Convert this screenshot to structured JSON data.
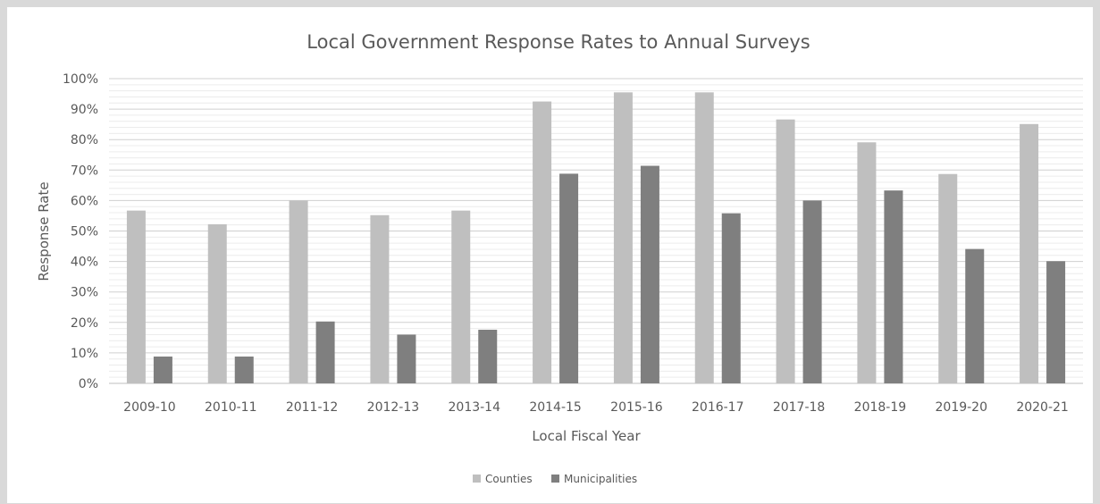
{
  "chart_data": {
    "type": "bar",
    "title": "Local Government Response Rates to Annual Surveys",
    "xlabel": "Local Fiscal Year",
    "ylabel": "Response Rate",
    "ylim": [
      0,
      100
    ],
    "y_ticks": [
      "0%",
      "10%",
      "20%",
      "30%",
      "40%",
      "50%",
      "60%",
      "70%",
      "80%",
      "90%",
      "100%"
    ],
    "grid": "horizontal major and minor",
    "legend": "bottom-center",
    "categories": [
      "2009-10",
      "2010-11",
      "2011-12",
      "2012-13",
      "2013-14",
      "2014-15",
      "2015-16",
      "2016-17",
      "2017-18",
      "2018-19",
      "2019-20",
      "2020-21"
    ],
    "series": [
      {
        "name": "Counties",
        "color": "#bfbfbf",
        "values": [
          56.7,
          52.2,
          60.0,
          55.2,
          56.7,
          92.5,
          95.5,
          95.5,
          86.6,
          79.1,
          68.7,
          85.1
        ]
      },
      {
        "name": "Municipalities",
        "color": "#7f7f7f",
        "values": [
          8.8,
          8.8,
          20.3,
          16.0,
          17.6,
          68.8,
          71.4,
          55.8,
          60.0,
          63.3,
          44.1,
          40.1
        ]
      }
    ]
  }
}
